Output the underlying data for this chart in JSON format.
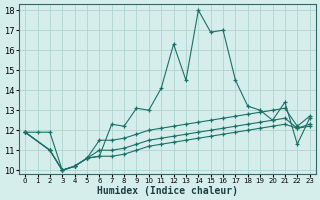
{
  "xlabel": "Humidex (Indice chaleur)",
  "xlim": [
    -0.5,
    23.5
  ],
  "ylim": [
    9.8,
    18.3
  ],
  "yticks": [
    10,
    11,
    12,
    13,
    14,
    15,
    16,
    17,
    18
  ],
  "xticks": [
    0,
    1,
    2,
    3,
    4,
    5,
    6,
    7,
    8,
    9,
    10,
    11,
    12,
    13,
    14,
    15,
    16,
    17,
    18,
    19,
    20,
    21,
    22,
    23
  ],
  "background_color": "#d6eeeb",
  "grid_color": "#b0d4cf",
  "line_color": "#1a7068",
  "line1_x": [
    0,
    1,
    2,
    3,
    4,
    5,
    6,
    7,
    8,
    9,
    10,
    11,
    12,
    13,
    14,
    15,
    16,
    17,
    18,
    19,
    20,
    21,
    22,
    23
  ],
  "line1_y": [
    11.9,
    11.9,
    11.9,
    10.0,
    10.2,
    10.6,
    10.7,
    12.3,
    12.2,
    13.1,
    13.0,
    14.1,
    16.3,
    14.5,
    18.0,
    16.9,
    17.0,
    14.5,
    13.2,
    13.0,
    12.5,
    13.4,
    11.3,
    12.6
  ],
  "line2_x": [
    0,
    2,
    3,
    4,
    5,
    6,
    7,
    8,
    9,
    10,
    11,
    12,
    13,
    14,
    15,
    16,
    17,
    18,
    19,
    20,
    21,
    22,
    23
  ],
  "line2_y": [
    11.9,
    11.0,
    10.0,
    10.2,
    10.6,
    11.5,
    11.5,
    11.6,
    11.8,
    12.0,
    12.1,
    12.2,
    12.3,
    12.4,
    12.5,
    12.6,
    12.7,
    12.8,
    12.9,
    13.0,
    13.1,
    12.2,
    12.7
  ],
  "line3_x": [
    0,
    2,
    3,
    4,
    5,
    6,
    7,
    8,
    9,
    10,
    11,
    12,
    13,
    14,
    15,
    16,
    17,
    18,
    19,
    20,
    21,
    22,
    23
  ],
  "line3_y": [
    11.9,
    11.0,
    10.0,
    10.2,
    10.6,
    11.0,
    11.0,
    11.1,
    11.3,
    11.5,
    11.6,
    11.7,
    11.8,
    11.9,
    12.0,
    12.1,
    12.2,
    12.3,
    12.4,
    12.5,
    12.6,
    12.1,
    12.2
  ],
  "line4_x": [
    0,
    2,
    3,
    4,
    5,
    6,
    7,
    8,
    9,
    10,
    11,
    12,
    13,
    14,
    15,
    16,
    17,
    18,
    19,
    20,
    21,
    22,
    23
  ],
  "line4_y": [
    11.9,
    11.0,
    10.0,
    10.2,
    10.6,
    10.7,
    10.7,
    10.8,
    11.0,
    11.2,
    11.3,
    11.4,
    11.5,
    11.6,
    11.7,
    11.8,
    11.9,
    12.0,
    12.1,
    12.2,
    12.3,
    12.1,
    12.3
  ]
}
